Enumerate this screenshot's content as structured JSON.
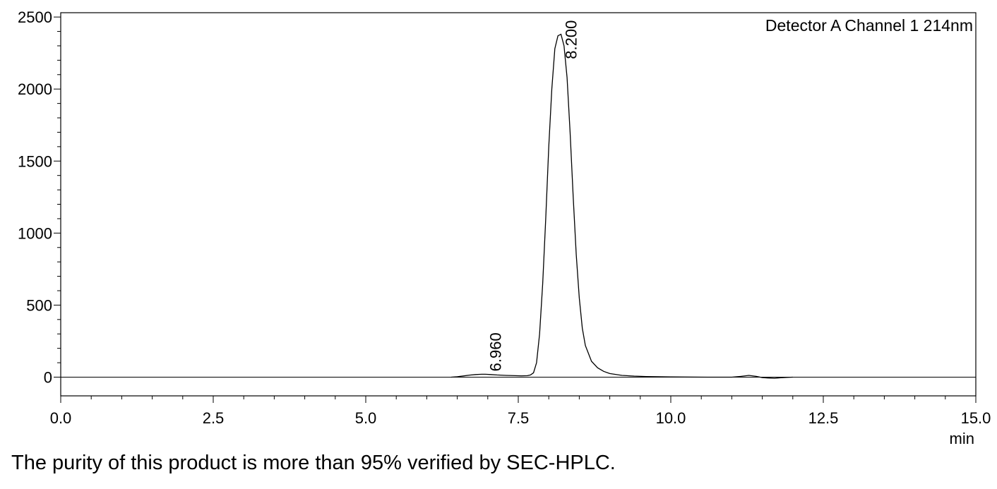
{
  "chart_data": {
    "type": "line",
    "detector_label": "Detector A Channel 1 214nm",
    "xunit": "min",
    "xlim": [
      0,
      15
    ],
    "ylim": [
      -130,
      2530
    ],
    "x_ticks": [
      0,
      2.5,
      5,
      7.5,
      10,
      12.5,
      15
    ],
    "x_tick_labels": [
      "0.0",
      "2.5",
      "5.0",
      "7.5",
      "10.0",
      "12.5",
      "15.0"
    ],
    "x_minor_step": 0.5,
    "y_ticks": [
      0,
      500,
      1000,
      1500,
      2000,
      2500
    ],
    "y_tick_labels": [
      "0",
      "500",
      "1000",
      "1500",
      "2000",
      "2500"
    ],
    "y_minor_step": 100,
    "baseline": 0,
    "grid": false,
    "peaks": [
      {
        "rt": 6.96,
        "label": "6.960",
        "height": 20
      },
      {
        "rt": 8.2,
        "label": "8.200",
        "height": 2380
      }
    ],
    "series": [
      {
        "x": [
          6.4,
          6.5,
          6.6,
          6.7,
          6.8,
          6.9,
          6.96,
          7.05,
          7.15,
          7.3,
          7.45,
          7.55,
          7.65,
          7.7,
          7.75,
          7.8,
          7.85,
          7.9,
          7.95,
          8.0,
          8.05,
          8.1,
          8.15,
          8.2,
          8.25,
          8.3,
          8.35,
          8.4,
          8.45,
          8.5,
          8.55,
          8.6,
          8.7,
          8.8,
          8.9,
          9.0,
          9.2,
          9.4,
          9.6,
          9.8,
          10.0,
          10.2,
          10.6,
          11.0,
          11.15,
          11.28,
          11.4,
          11.5,
          11.6,
          11.7,
          11.8,
          11.9,
          12.0
        ],
        "y": [
          0,
          3,
          8,
          14,
          18,
          20,
          20,
          18,
          15,
          12,
          10,
          9,
          10,
          15,
          30,
          100,
          300,
          650,
          1100,
          1600,
          2000,
          2280,
          2370,
          2380,
          2300,
          2080,
          1700,
          1250,
          850,
          550,
          340,
          220,
          110,
          65,
          40,
          25,
          12,
          7,
          4,
          3,
          2,
          1,
          0,
          0,
          5,
          12,
          5,
          -3,
          -6,
          -8,
          -4,
          -2,
          0
        ]
      }
    ]
  },
  "caption": "The purity of this product is more than 95% verified by SEC-HPLC."
}
